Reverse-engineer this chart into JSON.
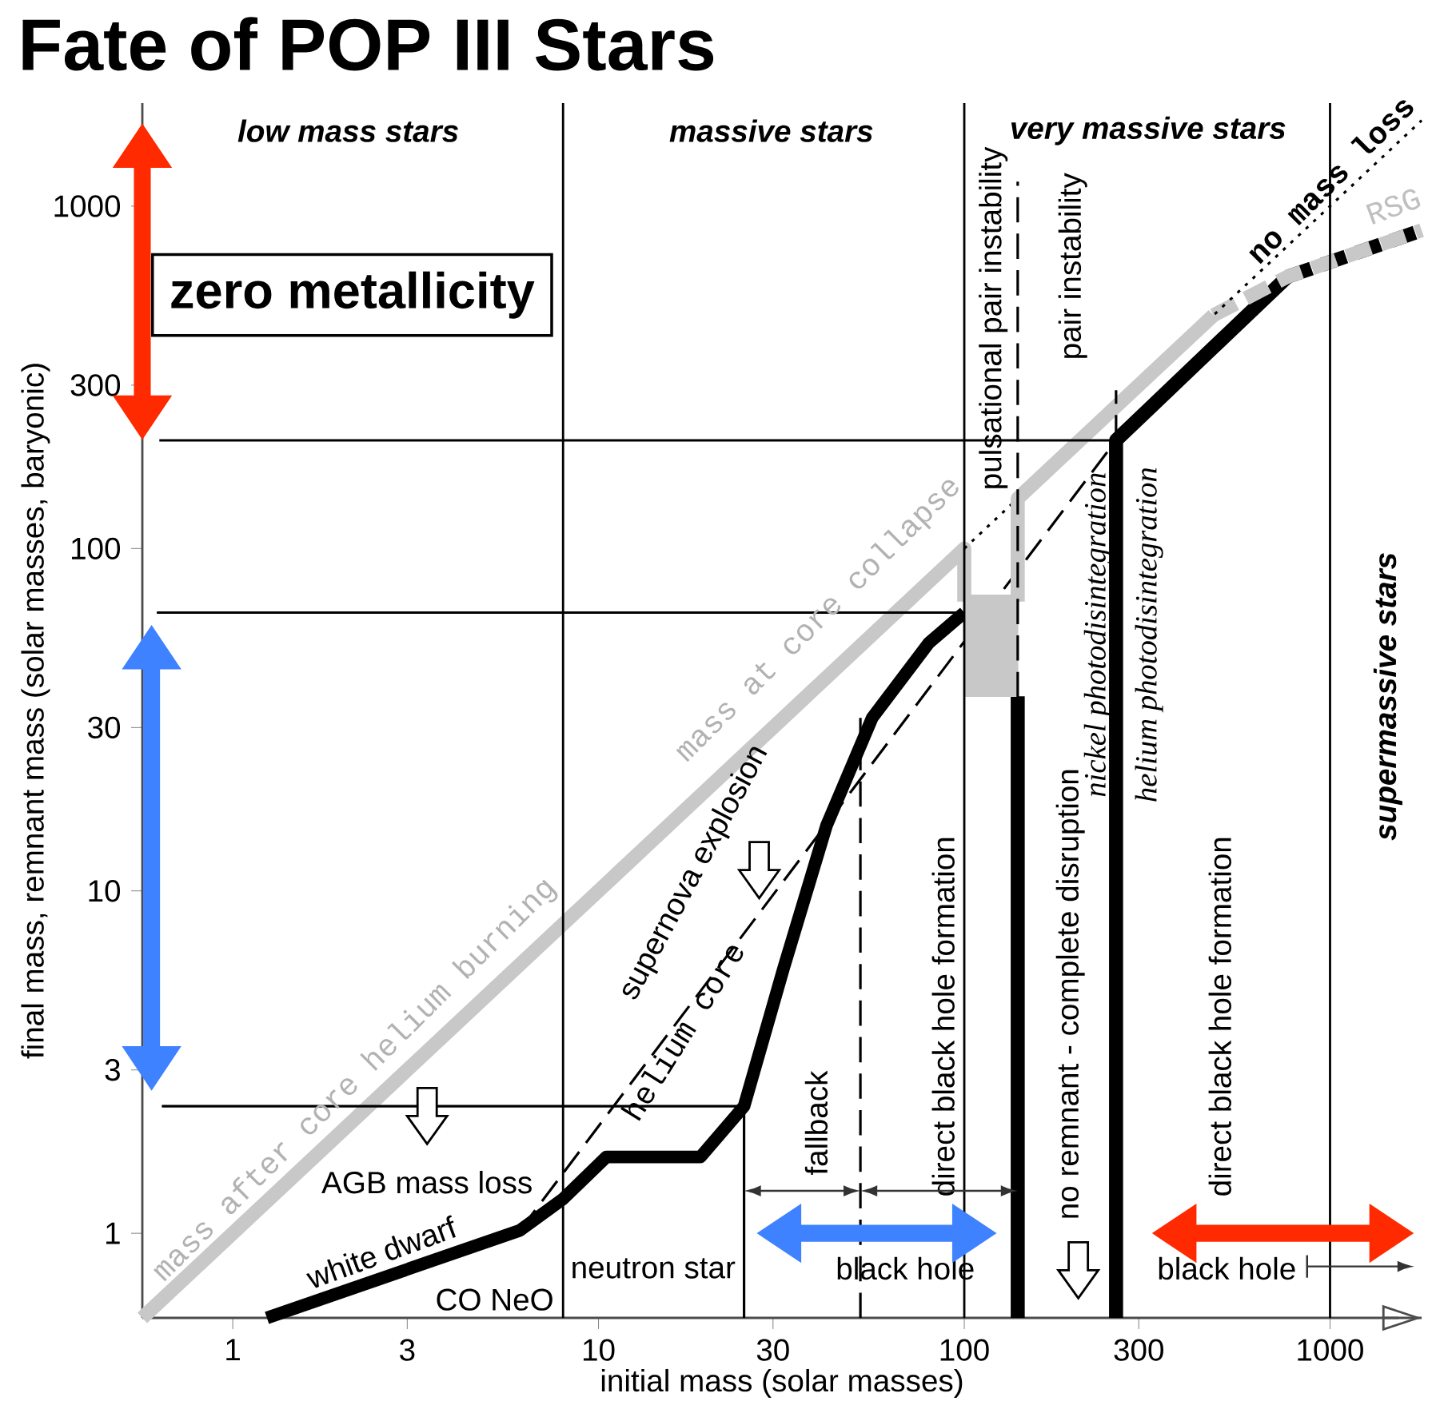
{
  "chart_data": {
    "type": "line",
    "title": "Fate of POP III Stars",
    "xlabel": "initial mass (solar masses)",
    "ylabel": "final mass, remnant mass (solar masses, baryonic)",
    "log": "xy",
    "xlim": [
      0.566,
      1780
    ],
    "ylim": [
      0.566,
      2000
    ],
    "xticks": [
      1,
      3,
      10,
      30,
      100,
      300,
      1000
    ],
    "yticks": [
      1,
      3,
      10,
      30,
      100,
      300,
      1000
    ],
    "series": [
      {
        "color": "#000000",
        "line_style": "solid",
        "x": [
          1.24,
          6.1,
          8,
          10.5,
          19,
          25,
          32,
          42,
          56,
          80,
          100
        ],
        "values": [
          0.566,
          1.02,
          1.26,
          1.67,
          1.67,
          2.35,
          5.9,
          15.5,
          32,
          53,
          65
        ]
      },
      {
        "color": "#000000",
        "line_style": "solid",
        "x": [
          140,
          140
        ],
        "values": [
          37,
          0.566
        ]
      },
      {
        "color": "#000000",
        "line_style": "solid",
        "x": [
          260,
          260,
          765
        ],
        "values": [
          0.566,
          207,
          622
        ]
      },
      {
        "color": "#000000",
        "line_style": "dashed",
        "x": [
          765,
          1780
        ],
        "values": [
          622,
          850
        ]
      },
      {
        "color": "#c8c8c8",
        "line_style": "solid",
        "x": [
          0.566,
          100,
          100
        ],
        "values": [
          0.566,
          100,
          70
        ]
      },
      {
        "color": "#c8c8c8",
        "line_style": "dashed",
        "x": [
          480,
          765,
          1780
        ],
        "values": [
          480,
          622,
          850
        ]
      },
      {
        "color": "#000000",
        "line_style": "dotted",
        "x": [
          100,
          1780
        ],
        "values": [
          100,
          1780
        ]
      },
      {
        "color": "#000000",
        "line_style": "dashed",
        "x": [
          6.1,
          260
        ],
        "values": [
          1.02,
          207
        ]
      },
      {
        "color": "#c8c8c8",
        "line_style": "solid",
        "x": [
          100,
          140
        ],
        "values": [
          70,
          70
        ],
        "lower": [
          37,
          37
        ],
        "upper": [
          70,
          70
        ]
      },
      {
        "color": "#c8c8c8",
        "line_style": "solid",
        "x": [
          140,
          140,
          480
        ],
        "values": [
          70,
          140,
          480
        ]
      },
      {
        "color": "#000000",
        "line_style": "solid",
        "x": [
          0.63,
          260
        ],
        "values": [
          207,
          207
        ]
      },
      {
        "color": "#000000",
        "line_style": "solid",
        "x": [
          0.62,
          100
        ],
        "values": [
          65,
          65
        ]
      },
      {
        "color": "#000000",
        "line_style": "solid",
        "x": [
          0.64,
          25
        ],
        "values": [
          2.35,
          2.35
        ]
      },
      {
        "color": "#000000",
        "line_style": "solid",
        "x": [
          25,
          25
        ],
        "values": [
          0.566,
          2.35
        ]
      },
      {
        "color": "#000000",
        "line_style": "dashed",
        "x": [
          52,
          52
        ],
        "values": [
          0.566,
          32
        ]
      },
      {
        "color": "#000000",
        "line_style": "dashed",
        "x": [
          260,
          260
        ],
        "values": [
          207,
          290
        ]
      },
      {
        "color": "#000000",
        "line_style": "dashed",
        "x": [
          140,
          140
        ],
        "values": [
          0.566,
          1180
        ]
      }
    ],
    "ref_lines": [
      {
        "axis": "x",
        "value": 8,
        "color": "#000000",
        "line_style": "solid"
      },
      {
        "axis": "x",
        "value": 100,
        "color": "#000000",
        "line_style": "solid"
      },
      {
        "axis": "x",
        "value": 1000,
        "color": "#000000",
        "line_style": "solid"
      }
    ],
    "annotations": [
      "low mass stars",
      "massive stars",
      "very massive stars",
      "zero metallicity",
      "pulsational pair instability",
      "pair instability",
      "no mass loss",
      "RSG",
      "mass at core collapse",
      "mass after core helium burning",
      "supernova explosion",
      "helium core",
      "nickel photodisintegration",
      "helium photodisintegration",
      "supermassive stars",
      "fallback",
      "direct black hole formation",
      "no remnant  -  complete disruption",
      "direct black hole formation",
      "AGB mass loss",
      "white dwarf",
      "CO   NeO",
      "neutron star",
      "black hole",
      "black hole"
    ]
  }
}
